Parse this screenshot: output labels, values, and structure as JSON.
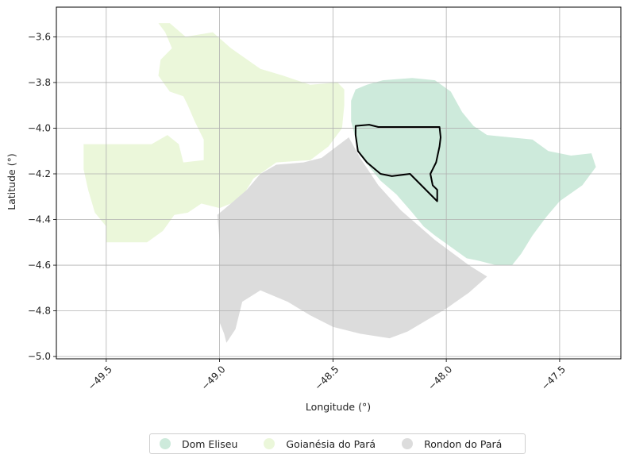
{
  "chart_data": {
    "type": "choropleth",
    "xlabel": "Longitude (°)",
    "ylabel": "Latitude (°)",
    "xlim": [
      -49.72,
      -47.23
    ],
    "ylim": [
      -5.01,
      -3.47
    ],
    "xticks": [
      -49.5,
      -49.0,
      -48.5,
      -48.0,
      -47.5
    ],
    "yticks": [
      -3.6,
      -3.8,
      -4.0,
      -4.2,
      -4.4,
      -4.6,
      -4.8,
      -5.0
    ],
    "xtick_labels": [
      "−49.5",
      "−49.0",
      "−48.5",
      "−48.0",
      "−47.5"
    ],
    "ytick_labels": [
      "−3.6",
      "−3.8",
      "−4.0",
      "−4.2",
      "−4.4",
      "−4.6",
      "−4.8",
      "−5.0"
    ],
    "grid": true,
    "legend_position": "bottom-center",
    "regions": [
      {
        "name": "Dom Eliseu",
        "color": "#cdeadb",
        "outline": [
          [
            -48.4,
            -3.83
          ],
          [
            -48.35,
            -3.81
          ],
          [
            -48.28,
            -3.79
          ],
          [
            -48.15,
            -3.78
          ],
          [
            -48.05,
            -3.79
          ],
          [
            -47.98,
            -3.84
          ],
          [
            -47.93,
            -3.93
          ],
          [
            -47.88,
            -3.99
          ],
          [
            -47.82,
            -4.03
          ],
          [
            -47.72,
            -4.04
          ],
          [
            -47.62,
            -4.05
          ],
          [
            -47.55,
            -4.1
          ],
          [
            -47.45,
            -4.12
          ],
          [
            -47.36,
            -4.11
          ],
          [
            -47.34,
            -4.17
          ],
          [
            -47.4,
            -4.25
          ],
          [
            -47.5,
            -4.32
          ],
          [
            -47.56,
            -4.39
          ],
          [
            -47.62,
            -4.47
          ],
          [
            -47.67,
            -4.55
          ],
          [
            -47.71,
            -4.6
          ],
          [
            -47.78,
            -4.6
          ],
          [
            -47.86,
            -4.58
          ],
          [
            -47.91,
            -4.57
          ],
          [
            -47.98,
            -4.52
          ],
          [
            -48.05,
            -4.47
          ],
          [
            -48.1,
            -4.43
          ],
          [
            -48.15,
            -4.37
          ],
          [
            -48.22,
            -4.29
          ],
          [
            -48.29,
            -4.23
          ],
          [
            -48.38,
            -4.12
          ],
          [
            -48.42,
            -3.97
          ],
          [
            -48.42,
            -3.88
          ]
        ]
      },
      {
        "name": "Goianésia do Pará",
        "color": "#ebf7da",
        "outline": [
          [
            -49.6,
            -4.07
          ],
          [
            -49.3,
            -4.07
          ],
          [
            -49.23,
            -4.03
          ],
          [
            -49.18,
            -4.07
          ],
          [
            -49.16,
            -4.15
          ],
          [
            -49.07,
            -4.14
          ],
          [
            -49.07,
            -4.05
          ],
          [
            -49.11,
            -3.97
          ],
          [
            -49.14,
            -3.9
          ],
          [
            -49.16,
            -3.86
          ],
          [
            -49.22,
            -3.84
          ],
          [
            -49.27,
            -3.77
          ],
          [
            -49.26,
            -3.7
          ],
          [
            -49.21,
            -3.65
          ],
          [
            -49.24,
            -3.58
          ],
          [
            -49.27,
            -3.54
          ],
          [
            -49.22,
            -3.54
          ],
          [
            -49.15,
            -3.6
          ],
          [
            -49.03,
            -3.58
          ],
          [
            -48.95,
            -3.65
          ],
          [
            -48.82,
            -3.74
          ],
          [
            -48.72,
            -3.77
          ],
          [
            -48.6,
            -3.81
          ],
          [
            -48.48,
            -3.8
          ],
          [
            -48.45,
            -3.83
          ],
          [
            -48.45,
            -3.9
          ],
          [
            -48.46,
            -4.0
          ],
          [
            -48.52,
            -4.08
          ],
          [
            -48.6,
            -4.14
          ],
          [
            -48.75,
            -4.15
          ],
          [
            -48.85,
            -4.22
          ],
          [
            -48.9,
            -4.3
          ],
          [
            -48.95,
            -4.33
          ],
          [
            -49.0,
            -4.35
          ],
          [
            -49.08,
            -4.33
          ],
          [
            -49.14,
            -4.37
          ],
          [
            -49.2,
            -4.38
          ],
          [
            -49.25,
            -4.45
          ],
          [
            -49.32,
            -4.5
          ],
          [
            -49.5,
            -4.5
          ],
          [
            -49.5,
            -4.43
          ],
          [
            -49.55,
            -4.37
          ],
          [
            -49.58,
            -4.27
          ],
          [
            -49.6,
            -4.18
          ]
        ]
      },
      {
        "name": "Rondon do Pará",
        "color": "#dcdcdc",
        "outline": [
          [
            -48.43,
            -4.04
          ],
          [
            -48.55,
            -4.13
          ],
          [
            -48.63,
            -4.15
          ],
          [
            -48.75,
            -4.16
          ],
          [
            -48.82,
            -4.2
          ],
          [
            -48.88,
            -4.27
          ],
          [
            -48.95,
            -4.33
          ],
          [
            -49.01,
            -4.38
          ],
          [
            -49.0,
            -4.49
          ],
          [
            -49.0,
            -4.85
          ],
          [
            -48.98,
            -4.9
          ],
          [
            -48.97,
            -4.94
          ],
          [
            -48.93,
            -4.88
          ],
          [
            -48.9,
            -4.76
          ],
          [
            -48.82,
            -4.71
          ],
          [
            -48.7,
            -4.76
          ],
          [
            -48.6,
            -4.82
          ],
          [
            -48.5,
            -4.87
          ],
          [
            -48.38,
            -4.9
          ],
          [
            -48.25,
            -4.92
          ],
          [
            -48.17,
            -4.89
          ],
          [
            -48.0,
            -4.79
          ],
          [
            -47.9,
            -4.72
          ],
          [
            -47.82,
            -4.65
          ],
          [
            -47.9,
            -4.6
          ],
          [
            -48.05,
            -4.49
          ],
          [
            -48.2,
            -4.36
          ],
          [
            -48.3,
            -4.25
          ],
          [
            -48.38,
            -4.13
          ]
        ]
      }
    ],
    "highlight_outline": [
      [
        -48.4,
        -3.99
      ],
      [
        -48.34,
        -3.985
      ],
      [
        -48.3,
        -3.995
      ],
      [
        -48.18,
        -3.995
      ],
      [
        -48.03,
        -3.995
      ],
      [
        -48.025,
        -4.04
      ],
      [
        -48.03,
        -4.08
      ],
      [
        -48.045,
        -4.15
      ],
      [
        -48.07,
        -4.2
      ],
      [
        -48.06,
        -4.25
      ],
      [
        -48.04,
        -4.27
      ],
      [
        -48.04,
        -4.32
      ],
      [
        -48.16,
        -4.2
      ],
      [
        -48.24,
        -4.21
      ],
      [
        -48.29,
        -4.2
      ],
      [
        -48.35,
        -4.15
      ],
      [
        -48.39,
        -4.1
      ],
      [
        -48.4,
        -4.03
      ]
    ]
  },
  "legend": {
    "items": [
      {
        "label": "Dom Eliseu",
        "color": "#cdeadb"
      },
      {
        "label": "Goianésia do Pará",
        "color": "#ebf7da"
      },
      {
        "label": "Rondon do Pará",
        "color": "#dcdcdc"
      }
    ]
  }
}
